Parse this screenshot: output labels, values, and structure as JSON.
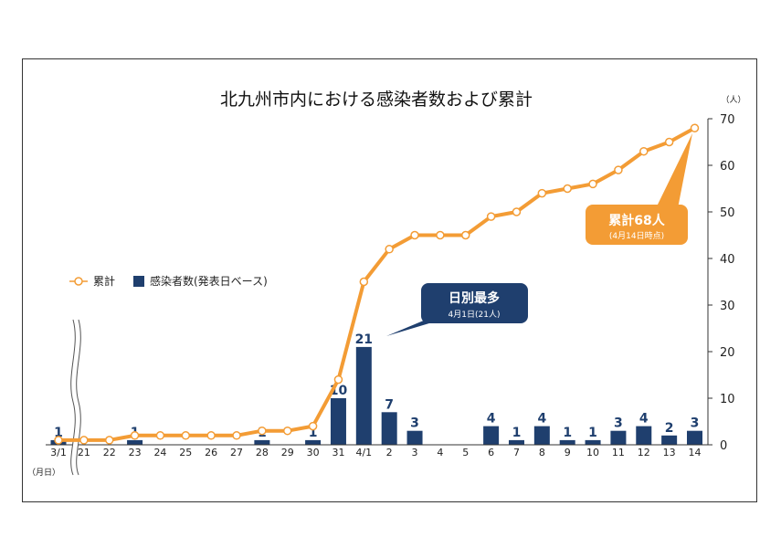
{
  "chart_data": {
    "type": "bar+line",
    "title": "北九州市内における感染者数および累計",
    "y_unit": "（人）",
    "x_unit": "（月日）",
    "ylim": [
      0,
      70
    ],
    "yticks": [
      0,
      10,
      20,
      30,
      40,
      50,
      60,
      70
    ],
    "categories": [
      "3/1",
      "21",
      "22",
      "23",
      "24",
      "25",
      "26",
      "27",
      "28",
      "29",
      "30",
      "31",
      "4/1",
      "2",
      "3",
      "4",
      "5",
      "6",
      "7",
      "8",
      "9",
      "10",
      "11",
      "12",
      "13",
      "14"
    ],
    "series": [
      {
        "name": "感染者数(発表日ベース)",
        "type": "bar",
        "color": "#1f3f6e",
        "values": [
          1,
          0,
          0,
          1,
          0,
          0,
          0,
          0,
          1,
          0,
          1,
          10,
          21,
          7,
          3,
          0,
          0,
          4,
          1,
          4,
          1,
          1,
          3,
          4,
          2,
          3
        ],
        "labels": [
          "1",
          "",
          "",
          "1",
          "",
          "",
          "",
          "",
          "1",
          "",
          "1",
          "10",
          "21",
          "7",
          "3",
          "",
          "",
          "4",
          "1",
          "4",
          "1",
          "1",
          "3",
          "4",
          "2",
          "3"
        ]
      },
      {
        "name": "累計",
        "type": "line",
        "color": "#f39c35",
        "values": [
          1,
          1,
          1,
          2,
          2,
          2,
          2,
          2,
          3,
          3,
          4,
          14,
          35,
          42,
          45,
          45,
          45,
          49,
          50,
          54,
          55,
          56,
          59,
          63,
          65,
          68
        ]
      }
    ],
    "legend": {
      "placement": "left",
      "items": [
        "累計",
        "感染者数(発表日ベース)"
      ]
    },
    "axis_break_after": "3/1",
    "annotations": [
      {
        "category": "4/1",
        "main": "日別最多",
        "sub": "4月1日(21人)",
        "color": "#1f3f6e"
      },
      {
        "category": "14",
        "main": "累計68人",
        "sub": "(4月14日時点)",
        "color": "#f39c35"
      }
    ]
  }
}
